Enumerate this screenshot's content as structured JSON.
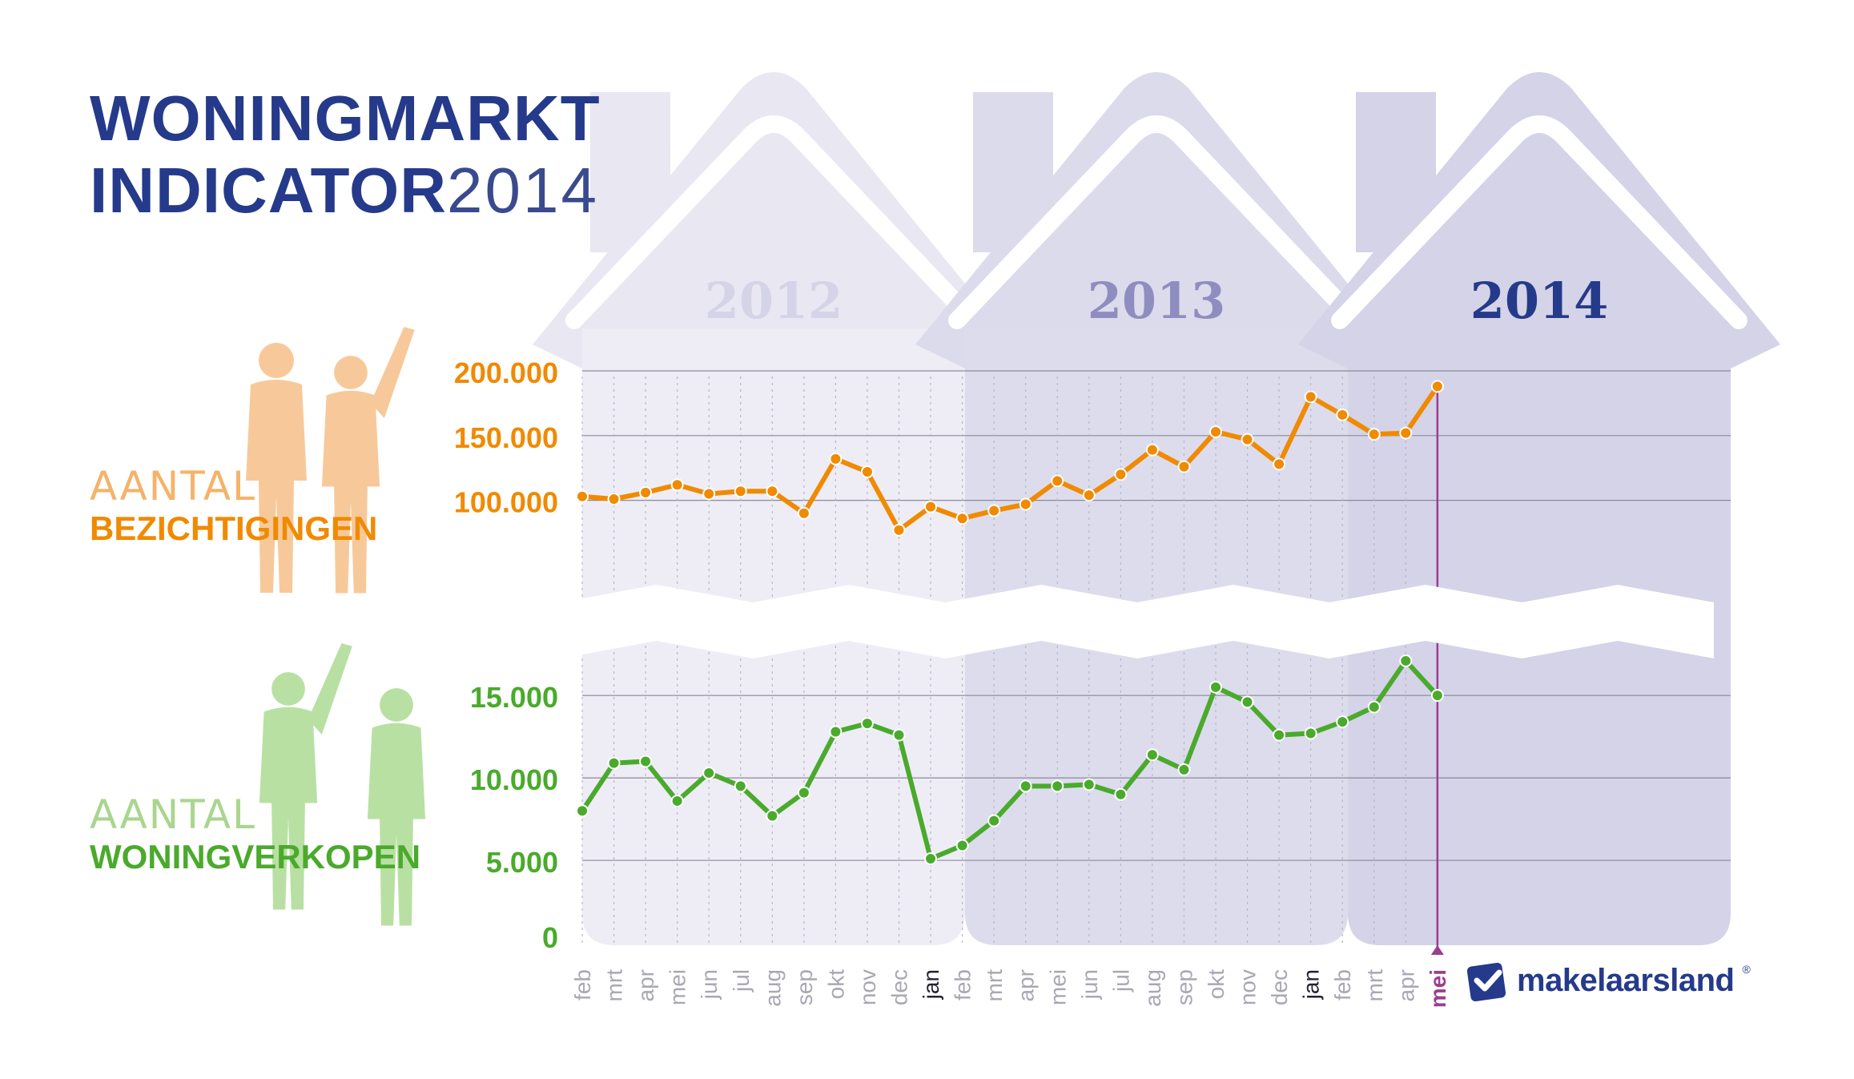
{
  "title": {
    "line1": "WONINGMARKT",
    "line2": "INDICATOR",
    "year": "2014"
  },
  "labels": {
    "bezichtigingen": {
      "thin": "AANTAL",
      "bold": "BEZICHTIGINGEN"
    },
    "woningverkopen": {
      "thin": "AANTAL",
      "bold": "WONINGVERKOPEN"
    }
  },
  "colors": {
    "orange": "#f08a00",
    "green": "#4aaa2c",
    "navy": "#253a8a",
    "purple": "#9b3d91"
  },
  "logo": {
    "text": "makelaarsland",
    "mark": "®",
    "icon": "house-check-icon"
  },
  "chart_data": {
    "type": "line",
    "highlight_month": "mei",
    "years": [
      {
        "label": "2012",
        "color": "#d4d3e7"
      },
      {
        "label": "2013",
        "color": "#8f8dc0"
      },
      {
        "label": "2014",
        "color": "#253a8a"
      }
    ],
    "months": [
      "feb",
      "mrt",
      "apr",
      "mei",
      "jun",
      "jul",
      "aug",
      "sep",
      "okt",
      "nov",
      "dec",
      "jan",
      "feb",
      "mrt",
      "apr",
      "mei",
      "jun",
      "jul",
      "aug",
      "sep",
      "okt",
      "nov",
      "dec",
      "jan",
      "feb",
      "mrt",
      "apr",
      "mei"
    ],
    "year_start_months": [
      "jan"
    ],
    "bezichtigingen": {
      "ticks": [
        {
          "label": "200.000",
          "value": 200000
        },
        {
          "label": "150.000",
          "value": 150000
        },
        {
          "label": "100.000",
          "value": 100000
        }
      ],
      "ylim": [
        75000,
        200000
      ],
      "axis_break_below": 75000,
      "values": [
        103000,
        101000,
        106000,
        112000,
        105000,
        107000,
        107000,
        90000,
        132000,
        122000,
        77000,
        95000,
        86000,
        92000,
        97000,
        115000,
        104000,
        120000,
        139000,
        126000,
        153000,
        147000,
        128000,
        180000,
        166000,
        151000,
        152000,
        188000
      ]
    },
    "woningverkopen": {
      "ticks": [
        {
          "label": "15.000",
          "value": 15000
        },
        {
          "label": "10.000",
          "value": 10000
        },
        {
          "label": "5.000",
          "value": 5000
        },
        {
          "label": "0",
          "value": 0
        }
      ],
      "ylim": [
        0,
        17000
      ],
      "axis_break_above": 17000,
      "values": [
        8000,
        10900,
        11000,
        8600,
        10300,
        9500,
        7700,
        9100,
        12800,
        13300,
        12600,
        5100,
        5900,
        7400,
        9500,
        9500,
        9600,
        9000,
        11400,
        10500,
        15500,
        14600,
        12600,
        12700,
        13400,
        14300,
        17100,
        15000
      ]
    }
  }
}
